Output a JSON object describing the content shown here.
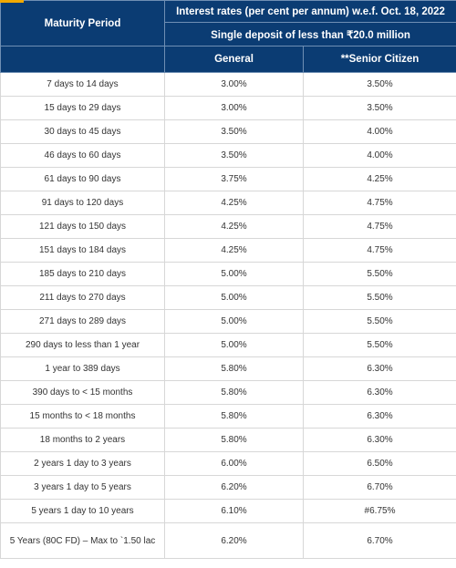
{
  "header": {
    "maturity_label": "Maturity Period",
    "rates_title": "Interest rates (per cent per annum) w.e.f. Oct. 18, 2022",
    "deposit_label": "Single deposit of less than ₹20.0 million",
    "general_label": "General",
    "senior_label": "**Senior Citizen"
  },
  "rows": [
    {
      "period": "7 days to 14 days",
      "general": "3.00%",
      "senior": "3.50%"
    },
    {
      "period": "15 days to 29 days",
      "general": "3.00%",
      "senior": "3.50%"
    },
    {
      "period": "30 days to 45 days",
      "general": "3.50%",
      "senior": "4.00%"
    },
    {
      "period": "46 days to 60 days",
      "general": "3.50%",
      "senior": "4.00%"
    },
    {
      "period": "61 days to 90 days",
      "general": "3.75%",
      "senior": "4.25%"
    },
    {
      "period": "91 days to 120 days",
      "general": "4.25%",
      "senior": "4.75%"
    },
    {
      "period": "121 days to 150 days",
      "general": "4.25%",
      "senior": "4.75%"
    },
    {
      "period": "151 days to 184 days",
      "general": "4.25%",
      "senior": "4.75%"
    },
    {
      "period": "185 days to 210 days",
      "general": "5.00%",
      "senior": "5.50%"
    },
    {
      "period": "211 days to 270 days",
      "general": "5.00%",
      "senior": "5.50%"
    },
    {
      "period": "271 days to 289 days",
      "general": "5.00%",
      "senior": "5.50%"
    },
    {
      "period": "290 days to less than 1 year",
      "general": "5.00%",
      "senior": "5.50%"
    },
    {
      "period": "1 year to 389 days",
      "general": "5.80%",
      "senior": "6.30%"
    },
    {
      "period": "390 days to < 15 months",
      "general": "5.80%",
      "senior": "6.30%"
    },
    {
      "period": "15 months to < 18 months",
      "general": "5.80%",
      "senior": "6.30%"
    },
    {
      "period": "18 months to 2 years",
      "general": "5.80%",
      "senior": "6.30%"
    },
    {
      "period": "2 years 1 day to 3 years",
      "general": "6.00%",
      "senior": "6.50%"
    },
    {
      "period": "3 years 1 day to 5 years",
      "general": "6.20%",
      "senior": "6.70%"
    },
    {
      "period": "5 years 1 day to 10 years",
      "general": "6.10%",
      "senior": "#6.75%"
    },
    {
      "period": "5 Years (80C FD) – Max to `1.50 lac",
      "general": "6.20%",
      "senior": "6.70%"
    }
  ],
  "colors": {
    "header_bg": "#0b3c73",
    "accent": "#f2a900"
  }
}
